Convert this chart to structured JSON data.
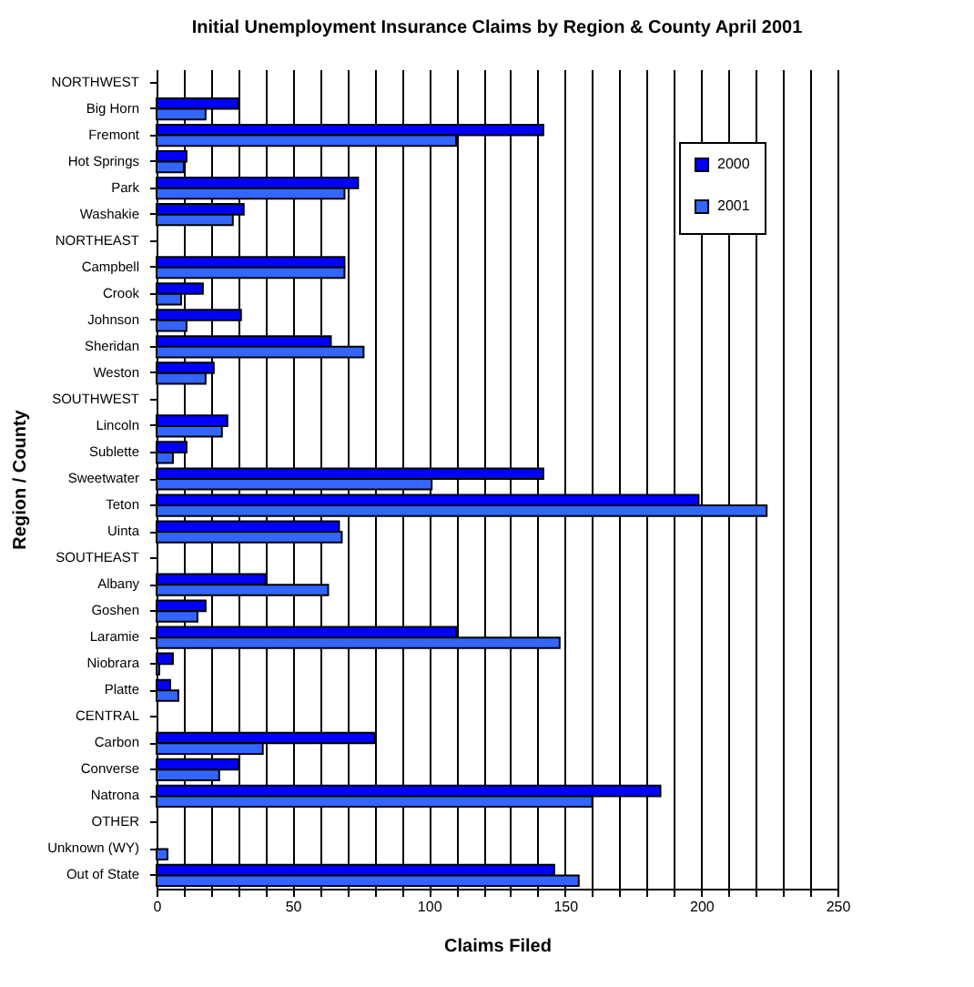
{
  "chart_data": {
    "type": "bar",
    "orientation": "horizontal",
    "title": "Initial Unemployment Insurance Claims by Region & County April 2001",
    "xlabel": "Claims Filed",
    "ylabel": "Region / County",
    "categories": [
      "NORTHWEST",
      "Big Horn",
      "Fremont",
      "Hot Springs",
      "Park",
      "Washakie",
      "NORTHEAST",
      "Campbell",
      "Crook",
      "Johnson",
      "Sheridan",
      "Weston",
      "SOUTHWEST",
      "Lincoln",
      "Sublette",
      "Sweetwater",
      "Teton",
      "Uinta",
      "SOUTHEAST",
      "Albany",
      "Goshen",
      "Laramie",
      "Niobrara",
      "Platte",
      "CENTRAL",
      "Carbon",
      "Converse",
      "Natrona",
      "OTHER",
      "Unknown (WY)",
      "Out of State"
    ],
    "series": [
      {
        "name": "2000",
        "color": "#0000ff",
        "values": [
          null,
          30,
          142,
          11,
          74,
          32,
          null,
          69,
          17,
          31,
          64,
          21,
          null,
          26,
          11,
          142,
          199,
          67,
          null,
          40,
          18,
          110,
          6,
          5,
          null,
          80,
          30,
          185,
          null,
          null,
          146
        ]
      },
      {
        "name": "2001",
        "color": "#3366ff",
        "values": [
          null,
          18,
          110,
          10,
          69,
          28,
          null,
          69,
          9,
          11,
          76,
          18,
          null,
          24,
          6,
          101,
          224,
          68,
          null,
          63,
          15,
          148,
          1,
          8,
          null,
          39,
          23,
          160,
          null,
          4,
          155
        ]
      }
    ],
    "xlim": [
      0,
      250
    ],
    "xticks": [
      0,
      {
        "value": 10,
        "label": null
      },
      {
        "value": 20,
        "label": null
      },
      {
        "value": 30,
        "label": null
      },
      {
        "value": 40,
        "label": null
      },
      50,
      {
        "value": 60,
        "label": null
      },
      {
        "value": 70,
        "label": null
      },
      {
        "value": 80,
        "label": null
      },
      {
        "value": 90,
        "label": null
      },
      100,
      {
        "value": 110,
        "label": null
      },
      {
        "value": 120,
        "label": null
      },
      {
        "value": 130,
        "label": null
      },
      {
        "value": 140,
        "label": null
      },
      150,
      {
        "value": 160,
        "label": null
      },
      {
        "value": 170,
        "label": null
      },
      {
        "value": 180,
        "label": null
      },
      {
        "value": 190,
        "label": null
      },
      200,
      {
        "value": 210,
        "label": null
      },
      {
        "value": 220,
        "label": null
      },
      {
        "value": 230,
        "label": null
      },
      {
        "value": 240,
        "label": null
      },
      250
    ],
    "grid": "x",
    "legend": "top right"
  }
}
